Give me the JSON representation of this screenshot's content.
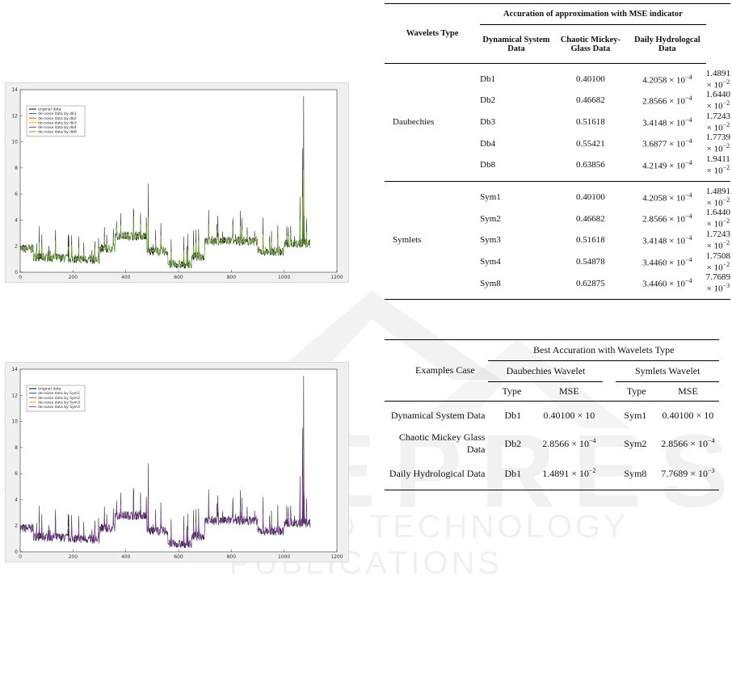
{
  "figures": [
    {
      "legend": [
        "original data",
        "de-noise data by db1",
        "de-noise data by db2",
        "de-noise data by db3",
        "de-noise data by db4",
        "de-noise data by db8"
      ],
      "legend_colors": [
        "#000000",
        "#1f4fd6",
        "#d94a1a",
        "#e0b020",
        "#9a3fb0",
        "#6aaa2a"
      ],
      "overlay_color": "#7cb83a"
    },
    {
      "legend": [
        "original data",
        "de-noise data by Sym1",
        "de-noise data by Sym2",
        "de-noise data by Sym3",
        "de-noise data by Sym4"
      ],
      "legend_colors": [
        "#000000",
        "#1f4fd6",
        "#d94a1a",
        "#e0b020",
        "#9a3fb0"
      ],
      "overlay_color": "#8a3fa8"
    }
  ],
  "plot_axes": {
    "x_ticks": [
      "0",
      "200",
      "400",
      "600",
      "800",
      "1000",
      "1200"
    ],
    "y_ticks": [
      "0",
      "2",
      "4",
      "6",
      "8",
      "10",
      "12",
      "14"
    ],
    "xlim": [
      0,
      1200
    ],
    "ylim": [
      0,
      14
    ]
  },
  "table1": {
    "header_group": "Accuration of approximation with MSE indicator",
    "col_wavelet": "Wavelets Type",
    "cols": [
      "Dynamical System Data",
      "Chaotic Mickey-Glass Data",
      "Daily Hydrologcal Data"
    ],
    "groups": [
      {
        "family": "Daubechies",
        "rows": [
          {
            "type": "Db1",
            "dyn": "0.40100",
            "chaotic_m": "4.2058",
            "chaotic_e": "−4",
            "hydro_m": "1.4891",
            "hydro_e": "−2"
          },
          {
            "type": "Db2",
            "dyn": "0.46682",
            "chaotic_m": "2.8566",
            "chaotic_e": "−4",
            "hydro_m": "1.6440",
            "hydro_e": "−2"
          },
          {
            "type": "Db3",
            "dyn": "0.51618",
            "chaotic_m": "3.4148",
            "chaotic_e": "−4",
            "hydro_m": "1.7243",
            "hydro_e": "−2"
          },
          {
            "type": "Db4",
            "dyn": "0.55421",
            "chaotic_m": "3.6877",
            "chaotic_e": "−4",
            "hydro_m": "1.7739",
            "hydro_e": "−2"
          },
          {
            "type": "Db8",
            "dyn": "0.63856",
            "chaotic_m": "4.2149",
            "chaotic_e": "−4",
            "hydro_m": "1.9411",
            "hydro_e": "−2"
          }
        ]
      },
      {
        "family": "Symlets",
        "rows": [
          {
            "type": "Sym1",
            "dyn": "0.40100",
            "chaotic_m": "4.2058",
            "chaotic_e": "−4",
            "hydro_m": "1.4891",
            "hydro_e": "−2"
          },
          {
            "type": "Sym2",
            "dyn": "0.46682",
            "chaotic_m": "2.8566",
            "chaotic_e": "−4",
            "hydro_m": "1.6440",
            "hydro_e": "−2"
          },
          {
            "type": "Sym3",
            "dyn": "0.51618",
            "chaotic_m": "3.4148",
            "chaotic_e": "−4",
            "hydro_m": "1.7243",
            "hydro_e": "−2"
          },
          {
            "type": "Sym4",
            "dyn": "0.54878",
            "chaotic_m": "3.4460",
            "chaotic_e": "−4",
            "hydro_m": "1.7508",
            "hydro_e": "−2"
          },
          {
            "type": "Sym8",
            "dyn": "0.62875",
            "chaotic_m": "3.4460",
            "chaotic_e": "−4",
            "hydro_m": "7.7689",
            "hydro_e": "−3"
          }
        ]
      }
    ]
  },
  "table2": {
    "col_case": "Examples Case",
    "header_group": "Best Accuration with Wavelets Type",
    "family_db": "Daubechies Wavelet",
    "family_sym": "Symlets Wavelet",
    "sub_type": "Type",
    "sub_mse": "MSE",
    "rows": [
      {
        "case": "Dynamical System Data",
        "db_type": "Db1",
        "db_mse": "0.40100",
        "db_exp": "",
        "sym_type": "Sym1",
        "sym_mse": "0.40100",
        "sym_exp": ""
      },
      {
        "case": "Chaotic Mickey Glass Data",
        "db_type": "Db2",
        "db_mse": "2.8566",
        "db_exp": "−4",
        "sym_type": "Sym2",
        "sym_mse": "2.8566",
        "sym_exp": "−4"
      },
      {
        "case": "Daily Hydrological Data",
        "db_type": "Db1",
        "db_mse": "1.4891",
        "db_exp": "−2",
        "sym_type": "Sym8",
        "sym_mse": "7.7689",
        "sym_exp": "−3"
      }
    ]
  },
  "watermark": {
    "line1": "SCITEPRESS",
    "line2": "SCIENCE AND TECHNOLOGY PUBLICATIONS"
  }
}
